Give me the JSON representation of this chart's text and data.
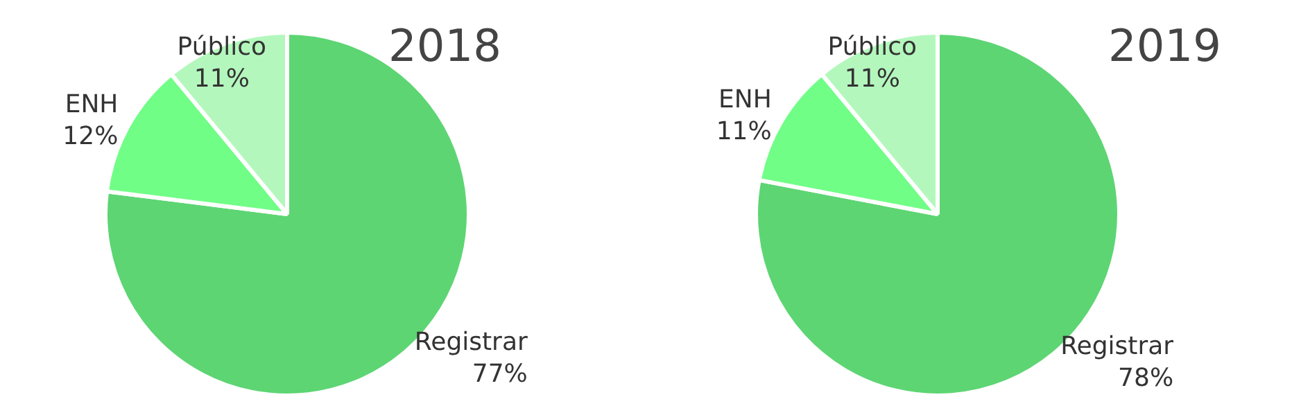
{
  "chart_data": [
    {
      "type": "pie",
      "title": "2018",
      "categories": [
        "Registrar",
        "ENH",
        "Público"
      ],
      "values": [
        77,
        12,
        11
      ],
      "colors": [
        "#5dd573",
        "#70fe86",
        "#b4f7bd"
      ],
      "value_labels": [
        "77%",
        "12%",
        "11%"
      ]
    },
    {
      "type": "pie",
      "title": "2019",
      "categories": [
        "Registrar",
        "ENH",
        "Público"
      ],
      "values": [
        78,
        11,
        11
      ],
      "colors": [
        "#5dd573",
        "#70fe86",
        "#b4f7bd"
      ],
      "value_labels": [
        "78%",
        "11%",
        "11%"
      ]
    }
  ]
}
